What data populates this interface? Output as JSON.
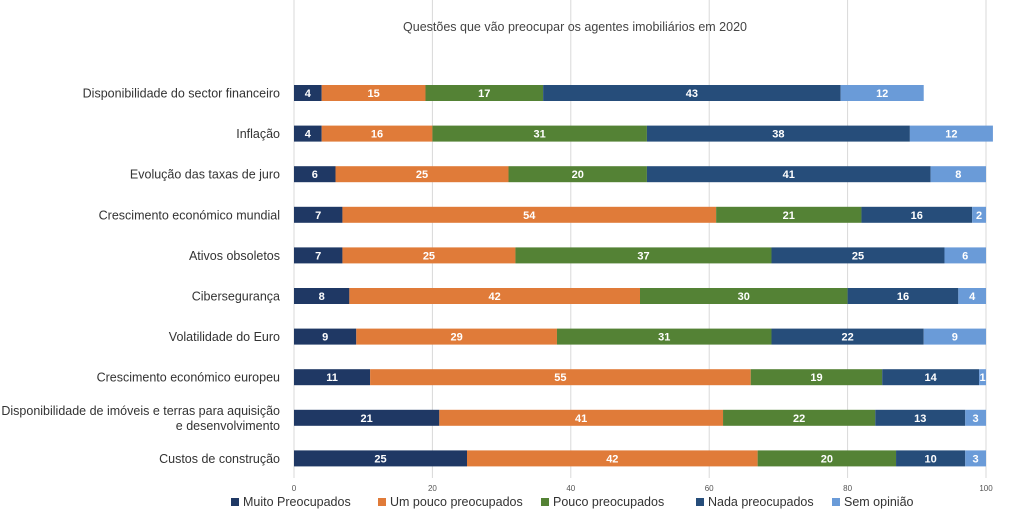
{
  "chart_data": {
    "type": "bar",
    "orientation": "horizontal",
    "stacked": true,
    "title": "Questões que vão preocupar os agentes imobiliários em 2020",
    "categories": [
      "Disponibilidade do sector financeiro",
      "Inflação",
      "Evolução das taxas de juro",
      "Crescimento económico mundial",
      "Ativos obsoletos",
      "Cibersegurança",
      "Volatilidade do Euro",
      "Crescimento económico europeu",
      "Disponibilidade de imóveis e terras para aquisição e desenvolvimento",
      "Custos de construção"
    ],
    "category_lines": [
      [
        "Disponibilidade do sector financeiro"
      ],
      [
        "Inflação"
      ],
      [
        "Evolução das taxas de juro"
      ],
      [
        "Crescimento económico mundial"
      ],
      [
        "Ativos obsoletos"
      ],
      [
        "Cibersegurança"
      ],
      [
        "Volatilidade do Euro"
      ],
      [
        "Crescimento económico europeu"
      ],
      [
        "Disponibilidade de imóveis e terras para aquisição",
        "e desenvolvimento"
      ],
      [
        "Custos de construção"
      ]
    ],
    "series": [
      {
        "name": "Muito Preocupados",
        "color": "#1f3864",
        "values": [
          4,
          4,
          6,
          7,
          7,
          8,
          9,
          11,
          21,
          25
        ]
      },
      {
        "name": "Um pouco preocupados",
        "color": "#e07b39",
        "values": [
          15,
          16,
          25,
          54,
          25,
          42,
          29,
          55,
          41,
          42
        ]
      },
      {
        "name": "Pouco preocupados",
        "color": "#548235",
        "values": [
          17,
          31,
          20,
          21,
          37,
          30,
          31,
          19,
          22,
          20
        ]
      },
      {
        "name": "Nada preocupados",
        "color": "#264d7a",
        "values": [
          43,
          38,
          41,
          16,
          25,
          16,
          22,
          14,
          13,
          10
        ]
      },
      {
        "name": "Sem opinião",
        "color": "#6a9bd8",
        "values": [
          12,
          12,
          8,
          2,
          6,
          4,
          9,
          1,
          3,
          3
        ]
      }
    ],
    "xlim": [
      0,
      100
    ],
    "xticks": [
      0,
      20,
      40,
      60,
      80,
      100
    ],
    "grid": true,
    "legend_position": "bottom"
  }
}
